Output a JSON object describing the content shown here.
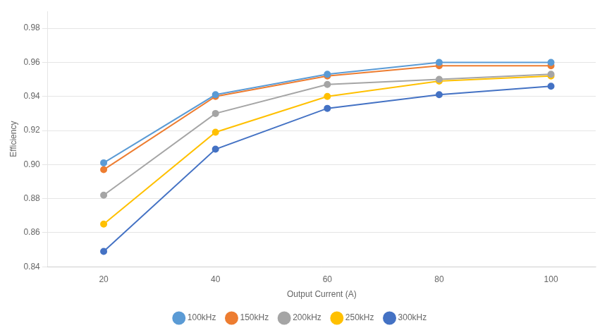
{
  "chart_data": {
    "type": "line",
    "xlabel": "Output Current (A)",
    "ylabel": "Efficiency",
    "x": [
      20,
      40,
      60,
      80,
      100
    ],
    "series": [
      {
        "name": "100kHz",
        "color": "#5B9BD5",
        "values": [
          0.901,
          0.941,
          0.953,
          0.96,
          0.96
        ]
      },
      {
        "name": "150kHz",
        "color": "#ED7D31",
        "values": [
          0.897,
          0.94,
          0.952,
          0.958,
          0.958
        ]
      },
      {
        "name": "200kHz",
        "color": "#A5A5A5",
        "values": [
          0.882,
          0.93,
          0.947,
          0.95,
          0.953
        ]
      },
      {
        "name": "250kHz",
        "color": "#FFC000",
        "values": [
          0.865,
          0.919,
          0.94,
          0.949,
          0.952
        ]
      },
      {
        "name": "300kHz",
        "color": "#4472C4",
        "values": [
          0.849,
          0.909,
          0.933,
          0.941,
          0.946
        ]
      }
    ],
    "xlim": [
      10,
      108
    ],
    "xticks": [
      20,
      40,
      60,
      80,
      100
    ],
    "ylim": [
      0.84,
      0.99
    ],
    "yticks": [
      0.84,
      0.86,
      0.88,
      {
        "value": 0.9,
        "label": "0.90"
      },
      0.92,
      0.94,
      0.96,
      0.98
    ],
    "marker": "circle",
    "grid": "y",
    "legend": "bottom"
  }
}
